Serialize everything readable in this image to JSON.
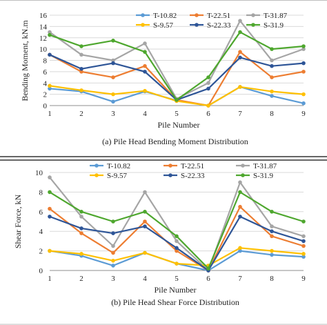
{
  "colors": {
    "T-10.82": "#5B9BD5",
    "T-22.51": "#ED7D31",
    "T-31.87": "#A5A5A5",
    "S-9.57": "#FFC000",
    "S-22.33": "#2E5597",
    "S-31.9": "#4EA72E"
  },
  "chart_data": [
    {
      "type": "line",
      "caption": "(a) Pile Head Bending Moment Distribution",
      "xlabel": "Pile Number",
      "ylabel": "Bending Moment, kN.m",
      "x": [
        1,
        2,
        3,
        4,
        5,
        6,
        7,
        8,
        9
      ],
      "ylim": [
        0,
        16
      ],
      "yticks": [
        0,
        2,
        4,
        6,
        8,
        10,
        12,
        14,
        16
      ],
      "grid": "horizontal",
      "legend": "top-right",
      "series": [
        {
          "name": "T-10.82",
          "values": [
            3.0,
            2.5,
            0.7,
            2.5,
            0.9,
            0.0,
            3.3,
            1.7,
            0.4
          ]
        },
        {
          "name": "T-22.51",
          "values": [
            9.0,
            6.0,
            5.0,
            7.0,
            1.0,
            0.0,
            9.5,
            5.0,
            6.0
          ]
        },
        {
          "name": "T-31.87",
          "values": [
            13.0,
            9.0,
            8.0,
            11.0,
            1.2,
            4.0,
            15.0,
            8.0,
            10.0
          ]
        },
        {
          "name": "S-9.57",
          "values": [
            3.5,
            2.7,
            2.0,
            2.6,
            0.8,
            0.0,
            3.3,
            2.5,
            2.0
          ]
        },
        {
          "name": "S-22.33",
          "values": [
            9.0,
            6.5,
            7.5,
            6.0,
            1.0,
            3.0,
            8.5,
            7.0,
            7.5
          ]
        },
        {
          "name": "S-31.9",
          "values": [
            12.5,
            10.5,
            11.5,
            9.5,
            1.0,
            5.0,
            13.0,
            10.0,
            10.5
          ]
        }
      ]
    },
    {
      "type": "line",
      "caption": "(b) Pile Head Shear Force Distribution",
      "xlabel": "Pile Number",
      "ylabel": "Shear Force, kN",
      "x": [
        1,
        2,
        3,
        4,
        5,
        6,
        7,
        8,
        9
      ],
      "ylim": [
        0,
        10
      ],
      "yticks": [
        0,
        2,
        4,
        6,
        8,
        10
      ],
      "grid": "horizontal",
      "legend": "top",
      "series": [
        {
          "name": "T-10.82",
          "values": [
            2.0,
            1.5,
            0.5,
            1.8,
            0.7,
            0.0,
            2.0,
            1.6,
            1.4
          ]
        },
        {
          "name": "T-22.51",
          "values": [
            6.3,
            3.8,
            1.8,
            5.0,
            2.0,
            0.0,
            6.5,
            3.5,
            2.5
          ]
        },
        {
          "name": "T-31.87",
          "values": [
            9.5,
            5.5,
            2.5,
            8.0,
            3.0,
            0.0,
            9.0,
            4.5,
            3.5
          ]
        },
        {
          "name": "S-9.57",
          "values": [
            2.0,
            1.7,
            1.0,
            1.8,
            0.7,
            0.5,
            2.3,
            2.0,
            1.7
          ]
        },
        {
          "name": "S-22.33",
          "values": [
            5.5,
            4.3,
            3.8,
            4.5,
            2.3,
            0.0,
            5.5,
            4.0,
            3.0
          ]
        },
        {
          "name": "S-31.9",
          "values": [
            8.0,
            6.0,
            5.0,
            6.0,
            3.5,
            0.2,
            8.0,
            6.0,
            5.0
          ]
        }
      ]
    }
  ]
}
